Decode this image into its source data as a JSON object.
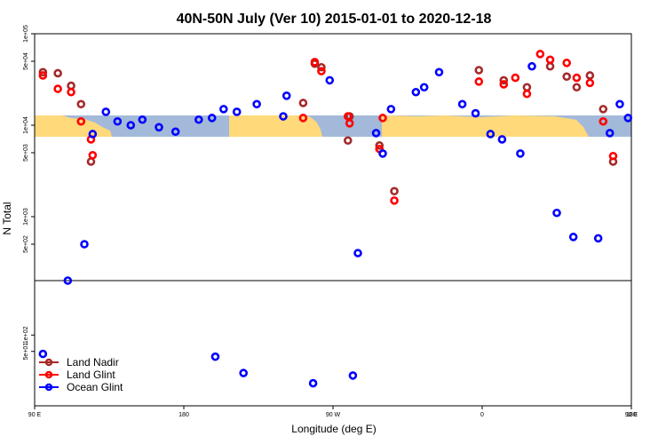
{
  "chart_data": {
    "type": "scatter",
    "title": "40N-50N July (Ver 10)   2015-01-01 to 2020-12-18",
    "xlabel": "Longitude (deg E)",
    "ylabel": "N Total",
    "xlim": [
      90,
      450
    ],
    "x_tick_values": [
      90,
      180,
      270,
      360,
      450,
      540
    ],
    "x_tick_labels": [
      "90 E",
      "180",
      "90 W",
      "0",
      "90 E",
      "180"
    ],
    "upper_panel": {
      "scale": "log",
      "ylim": [
        200,
        100000
      ],
      "y_tick_values": [
        500,
        1000,
        5000,
        10000,
        50000,
        100000
      ],
      "y_tick_labels": [
        "5e+02",
        "1e+03",
        "5e+03",
        "1e+04",
        "5e+04",
        "1e+05"
      ]
    },
    "lower_panel": {
      "scale": "log",
      "ylim": [
        5,
        1000
      ],
      "y_tick_values": [
        50,
        100
      ],
      "y_tick_labels": [
        "5e+01",
        "1e+02"
      ]
    },
    "legend": {
      "placement": "bottom-left",
      "entries": [
        "Land Nadir",
        "Land Glint",
        "Ocean Glint"
      ]
    },
    "series": [
      {
        "name": "Land Nadir",
        "color": "#a52a2a",
        "points": [
          {
            "x": 95,
            "y": 38000
          },
          {
            "x": 104,
            "y": 37000
          },
          {
            "x": 112,
            "y": 27000
          },
          {
            "x": 118,
            "y": 17000
          },
          {
            "x": 124,
            "y": 4000
          },
          {
            "x": 252,
            "y": 17500
          },
          {
            "x": 259,
            "y": 47000
          },
          {
            "x": 263,
            "y": 43000
          },
          {
            "x": 280,
            "y": 12500
          },
          {
            "x": 279,
            "y": 6800
          },
          {
            "x": 298,
            "y": 6000
          },
          {
            "x": 307,
            "y": 1900
          },
          {
            "x": 358,
            "y": 40000
          },
          {
            "x": 373,
            "y": 31000
          },
          {
            "x": 387,
            "y": 26000
          },
          {
            "x": 401,
            "y": 44000
          },
          {
            "x": 411,
            "y": 34000
          },
          {
            "x": 417,
            "y": 26000
          },
          {
            "x": 425,
            "y": 35000
          },
          {
            "x": 433,
            "y": 15000
          },
          {
            "x": 439,
            "y": 4000
          }
        ]
      },
      {
        "name": "Land Glint",
        "color": "#ff0000",
        "points": [
          {
            "x": 95,
            "y": 35000
          },
          {
            "x": 104,
            "y": 25000
          },
          {
            "x": 112,
            "y": 23000
          },
          {
            "x": 118,
            "y": 11000
          },
          {
            "x": 124,
            "y": 7000
          },
          {
            "x": 125,
            "y": 4700
          },
          {
            "x": 252,
            "y": 12000
          },
          {
            "x": 259,
            "y": 49000
          },
          {
            "x": 263,
            "y": 39000
          },
          {
            "x": 280,
            "y": 10500
          },
          {
            "x": 279,
            "y": 12500
          },
          {
            "x": 298,
            "y": 5500
          },
          {
            "x": 307,
            "y": 1500
          },
          {
            "x": 358,
            "y": 30000
          },
          {
            "x": 373,
            "y": 28000
          },
          {
            "x": 387,
            "y": 22000
          },
          {
            "x": 401,
            "y": 52000
          },
          {
            "x": 411,
            "y": 48000
          },
          {
            "x": 417,
            "y": 33000
          },
          {
            "x": 425,
            "y": 29000
          },
          {
            "x": 433,
            "y": 11000
          },
          {
            "x": 439,
            "y": 4600
          },
          {
            "x": 395,
            "y": 60000
          },
          {
            "x": 380,
            "y": 33000
          },
          {
            "x": 300,
            "y": 12000
          }
        ]
      },
      {
        "name": "Ocean Glint",
        "color": "#0000ff",
        "points": [
          {
            "x": 95,
            "y": 45
          },
          {
            "x": 110,
            "y": 200
          },
          {
            "x": 120,
            "y": 500
          },
          {
            "x": 125,
            "y": 8000
          },
          {
            "x": 133,
            "y": 14000
          },
          {
            "x": 140,
            "y": 11000
          },
          {
            "x": 148,
            "y": 10000
          },
          {
            "x": 155,
            "y": 11500
          },
          {
            "x": 165,
            "y": 9500
          },
          {
            "x": 175,
            "y": 8500
          },
          {
            "x": 189,
            "y": 11500
          },
          {
            "x": 197,
            "y": 12000
          },
          {
            "x": 204,
            "y": 15000
          },
          {
            "x": 212,
            "y": 14000
          },
          {
            "x": 224,
            "y": 17000
          },
          {
            "x": 240,
            "y": 12500
          },
          {
            "x": 242,
            "y": 21000
          },
          {
            "x": 268,
            "y": 31000
          },
          {
            "x": 285,
            "y": 400
          },
          {
            "x": 296,
            "y": 8200
          },
          {
            "x": 300,
            "y": 4900
          },
          {
            "x": 305,
            "y": 15000
          },
          {
            "x": 320,
            "y": 23000
          },
          {
            "x": 325,
            "y": 26000
          },
          {
            "x": 334,
            "y": 38000
          },
          {
            "x": 348,
            "y": 17000
          },
          {
            "x": 356,
            "y": 13500
          },
          {
            "x": 365,
            "y": 8000
          },
          {
            "x": 372,
            "y": 7000
          },
          {
            "x": 383,
            "y": 4900
          },
          {
            "x": 390,
            "y": 44000
          },
          {
            "x": 405,
            "y": 1100
          },
          {
            "x": 415,
            "y": 600
          },
          {
            "x": 430,
            "y": 580
          },
          {
            "x": 437,
            "y": 8200
          },
          {
            "x": 443,
            "y": 17000
          },
          {
            "x": 448,
            "y": 12000
          },
          {
            "x": 199,
            "y": 40
          },
          {
            "x": 216,
            "y": 20
          },
          {
            "x": 282,
            "y": 18
          },
          {
            "x": 258,
            "y": 13
          }
        ]
      }
    ]
  }
}
